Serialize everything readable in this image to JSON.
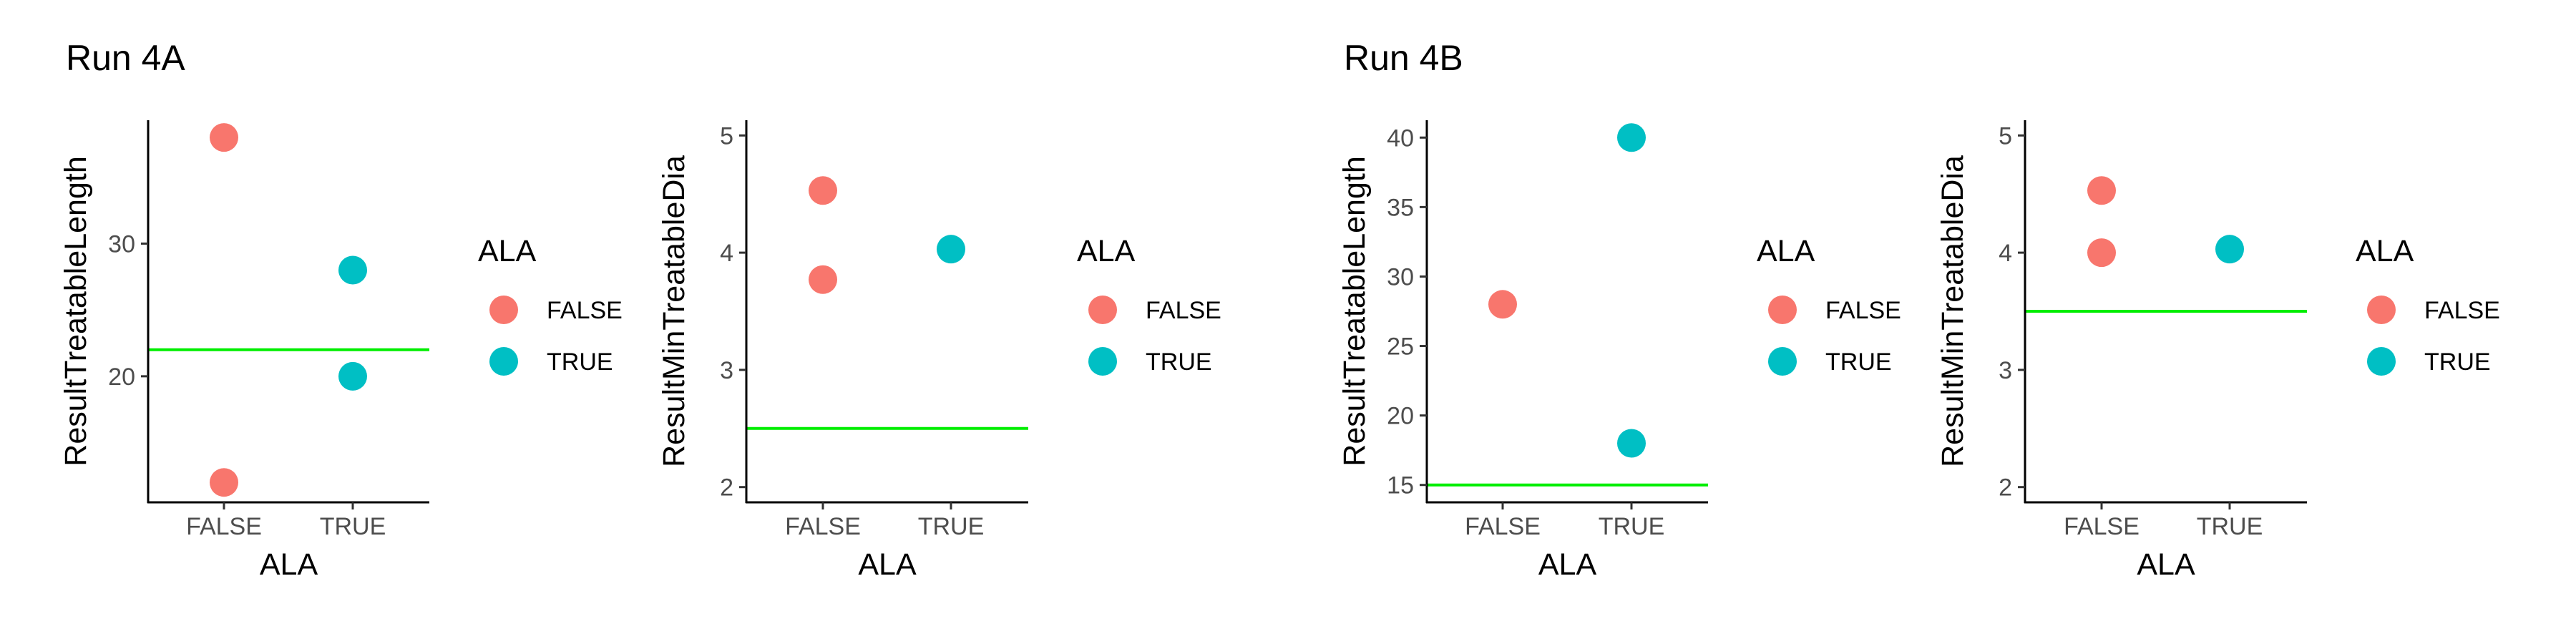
{
  "titles": [
    "Run 4A",
    "Run 4B"
  ],
  "colors": {
    "FALSE": "#F8766D",
    "TRUE": "#00BFC4",
    "hline": "#00EE00"
  },
  "chart_data": [
    {
      "type": "scatter",
      "panel_title": "Run 4A",
      "categories": [
        "FALSE",
        "TRUE"
      ],
      "xlabel": "ALA",
      "ylabel": "ResultTreatableLength",
      "ylim": [
        10.5,
        39.3
      ],
      "yticks": [
        20,
        30
      ],
      "hline": 22,
      "points": [
        {
          "x": "FALSE",
          "y": 38
        },
        {
          "x": "FALSE",
          "y": 12
        },
        {
          "x": "TRUE",
          "y": 28
        },
        {
          "x": "TRUE",
          "y": 20
        }
      ],
      "legend": {
        "title": "ALA",
        "entries": [
          "FALSE",
          "TRUE"
        ]
      }
    },
    {
      "type": "scatter",
      "categories": [
        "FALSE",
        "TRUE"
      ],
      "xlabel": "ALA",
      "ylabel": "ResultMinTreatableDia",
      "ylim": [
        1.87,
        5.13
      ],
      "yticks": [
        2,
        3,
        4,
        5
      ],
      "hline": 2.5,
      "points": [
        {
          "x": "FALSE",
          "y": 4.53
        },
        {
          "x": "FALSE",
          "y": 3.77
        },
        {
          "x": "TRUE",
          "y": 4.03
        }
      ],
      "legend": {
        "title": "ALA",
        "entries": [
          "FALSE",
          "TRUE"
        ]
      }
    },
    {
      "type": "scatter",
      "panel_title": "Run 4B",
      "categories": [
        "FALSE",
        "TRUE"
      ],
      "xlabel": "ALA",
      "ylabel": "ResultTreatableLength",
      "ylim": [
        13.75,
        41.25
      ],
      "yticks": [
        15,
        20,
        25,
        30,
        35,
        40
      ],
      "hline": 15,
      "points": [
        {
          "x": "FALSE",
          "y": 28
        },
        {
          "x": "TRUE",
          "y": 40
        },
        {
          "x": "TRUE",
          "y": 18
        }
      ],
      "legend": {
        "title": "ALA",
        "entries": [
          "FALSE",
          "TRUE"
        ]
      }
    },
    {
      "type": "scatter",
      "categories": [
        "FALSE",
        "TRUE"
      ],
      "xlabel": "ALA",
      "ylabel": "ResultMinTreatableDia",
      "ylim": [
        1.87,
        5.13
      ],
      "yticks": [
        2,
        3,
        4,
        5
      ],
      "hline": 3.5,
      "points": [
        {
          "x": "FALSE",
          "y": 4.53
        },
        {
          "x": "FALSE",
          "y": 4.0
        },
        {
          "x": "TRUE",
          "y": 4.03
        }
      ],
      "legend": {
        "title": "ALA",
        "entries": [
          "FALSE",
          "TRUE"
        ]
      }
    }
  ]
}
